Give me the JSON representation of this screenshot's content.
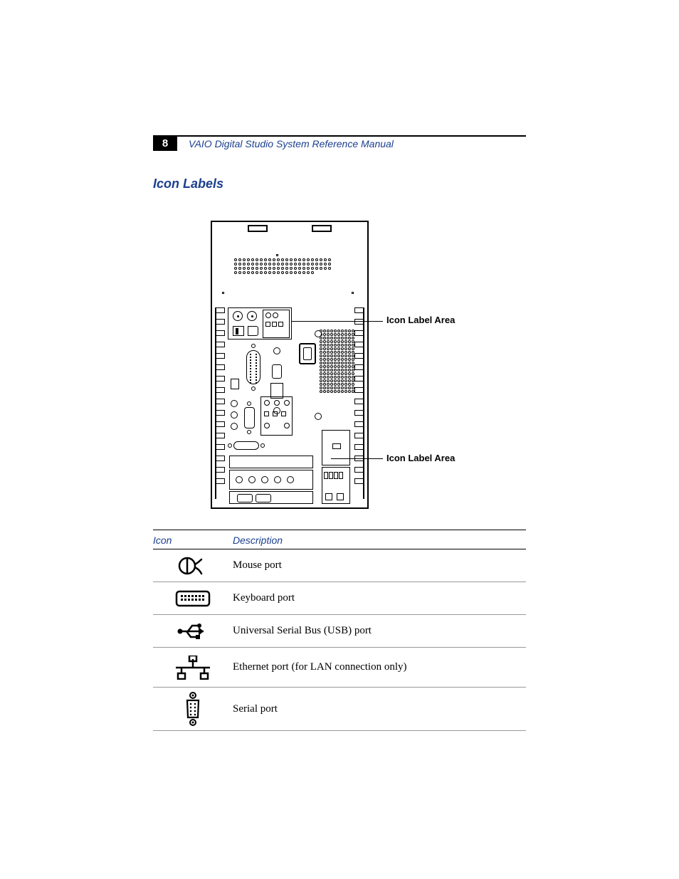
{
  "page": {
    "number": "8",
    "header_title": "VAIO Digital Studio System Reference Manual",
    "section_title": "Icon Labels",
    "accent_color": "#1b3f8f"
  },
  "diagram": {
    "callouts": {
      "upper": "Icon Label Area",
      "lower": "Icon Label Area"
    }
  },
  "table": {
    "head": {
      "icon": "Icon",
      "desc": "Description"
    },
    "rows": [
      {
        "icon_name": "mouse-port",
        "desc": "Mouse port"
      },
      {
        "icon_name": "keyboard-port",
        "desc": "Keyboard port"
      },
      {
        "icon_name": "usb-port",
        "desc": "Universal Serial Bus (USB) port"
      },
      {
        "icon_name": "ethernet-port",
        "desc": "Ethernet port (for LAN connection only)"
      },
      {
        "icon_name": "serial-port",
        "desc": "Serial port"
      }
    ]
  }
}
